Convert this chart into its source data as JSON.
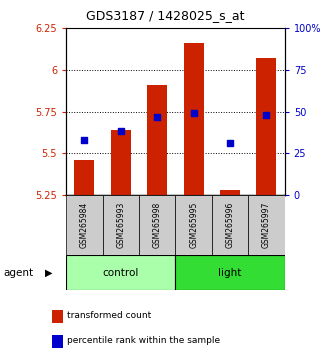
{
  "title": "GDS3187 / 1428025_s_at",
  "samples": [
    "GSM265984",
    "GSM265993",
    "GSM265998",
    "GSM265995",
    "GSM265996",
    "GSM265997"
  ],
  "groups": [
    {
      "name": "control",
      "color": "#AAFFAA",
      "samples": [
        0,
        1,
        2
      ]
    },
    {
      "name": "light",
      "color": "#33DD33",
      "samples": [
        3,
        4,
        5
      ]
    }
  ],
  "bar_bottom": 5.25,
  "bar_top_values": [
    5.46,
    5.64,
    5.91,
    6.16,
    5.28,
    6.07
  ],
  "percentile_values": [
    5.58,
    5.63,
    5.72,
    5.74,
    5.56,
    5.73
  ],
  "ylim_left": [
    5.25,
    6.25
  ],
  "ylim_right": [
    0,
    100
  ],
  "yticks_left": [
    5.25,
    5.5,
    5.75,
    6.0,
    6.25
  ],
  "ytick_labels_left": [
    "5.25",
    "5.5",
    "5.75",
    "6",
    "6.25"
  ],
  "yticks_right": [
    0,
    25,
    50,
    75,
    100
  ],
  "ytick_labels_right": [
    "0",
    "25",
    "50",
    "75",
    "100%"
  ],
  "bar_color": "#CC2200",
  "dot_color": "#0000CC",
  "bar_width": 0.55,
  "grid_yticks": [
    5.5,
    5.75,
    6.0
  ],
  "legend_items": [
    {
      "label": "transformed count",
      "color": "#CC2200"
    },
    {
      "label": "percentile rank within the sample",
      "color": "#0000CC"
    }
  ],
  "sample_row_color": "#CCCCCC",
  "fig_width": 3.31,
  "fig_height": 3.54
}
